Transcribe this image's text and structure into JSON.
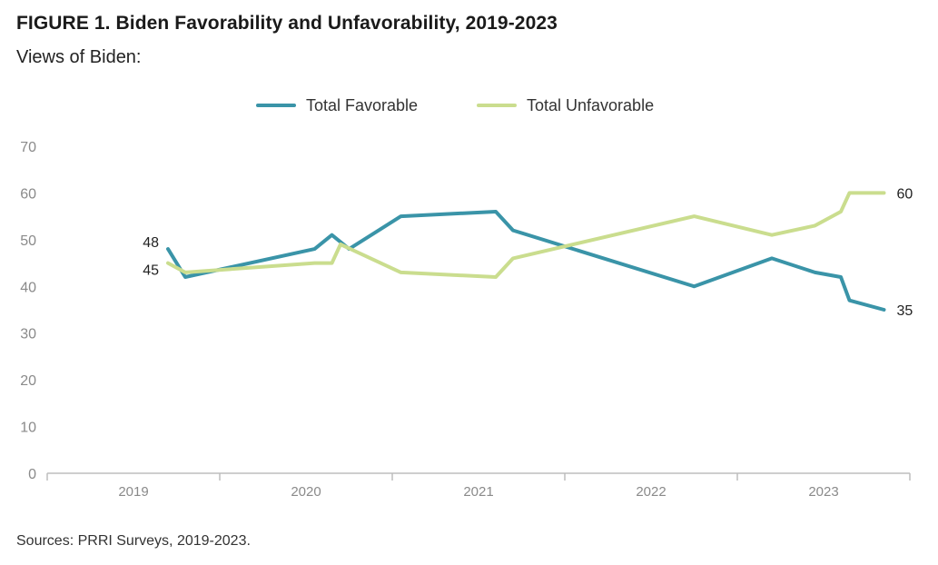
{
  "header": {
    "title": "FIGURE 1. Biden Favorability and Unfavorability, 2019-2023",
    "subtitle": "Views of Biden:"
  },
  "footer": {
    "source": "Sources: PRRI Surveys, 2019-2023."
  },
  "colors": {
    "favorable": "#3a94a8",
    "unfavorable": "#cadd8e",
    "axis": "#bdbdbd",
    "tick_text": "#8a8a8a"
  },
  "chart_data": {
    "type": "line",
    "xlabel": "",
    "ylabel": "",
    "ylim": [
      0,
      70
    ],
    "yticks": [
      0,
      10,
      20,
      30,
      40,
      50,
      60,
      70
    ],
    "xlim": [
      2019.0,
      2024.0
    ],
    "x_tick_labels": [
      {
        "label": "2019",
        "x": 2019.5
      },
      {
        "label": "2020",
        "x": 2020.5
      },
      {
        "label": "2021",
        "x": 2021.5
      },
      {
        "label": "2022",
        "x": 2022.5
      },
      {
        "label": "2023",
        "x": 2023.5
      }
    ],
    "grid": false,
    "legend_position": "top",
    "series": [
      {
        "name": "Total Favorable",
        "color_key": "favorable",
        "x": [
          2019.7,
          2019.8,
          2020.55,
          2020.65,
          2020.75,
          2021.05,
          2021.6,
          2021.7,
          2022.75,
          2023.2,
          2023.45,
          2023.6,
          2023.65,
          2023.85
        ],
        "y": [
          48,
          42,
          48,
          51,
          48,
          55,
          56,
          52,
          40,
          46,
          43,
          42,
          37,
          35
        ]
      },
      {
        "name": "Total Unfavorable",
        "color_key": "unfavorable",
        "x": [
          2019.7,
          2019.8,
          2020.55,
          2020.65,
          2020.7,
          2021.05,
          2021.6,
          2021.7,
          2022.75,
          2023.2,
          2023.45,
          2023.6,
          2023.65,
          2023.85
        ],
        "y": [
          45,
          43,
          45,
          45,
          49,
          43,
          42,
          46,
          55,
          51,
          53,
          56,
          60,
          60
        ]
      }
    ],
    "end_labels": [
      {
        "text": "48",
        "series": 0,
        "point": "first"
      },
      {
        "text": "45",
        "series": 1,
        "point": "first"
      },
      {
        "text": "60",
        "series": 1,
        "point": "last"
      },
      {
        "text": "35",
        "series": 0,
        "point": "last"
      }
    ]
  }
}
